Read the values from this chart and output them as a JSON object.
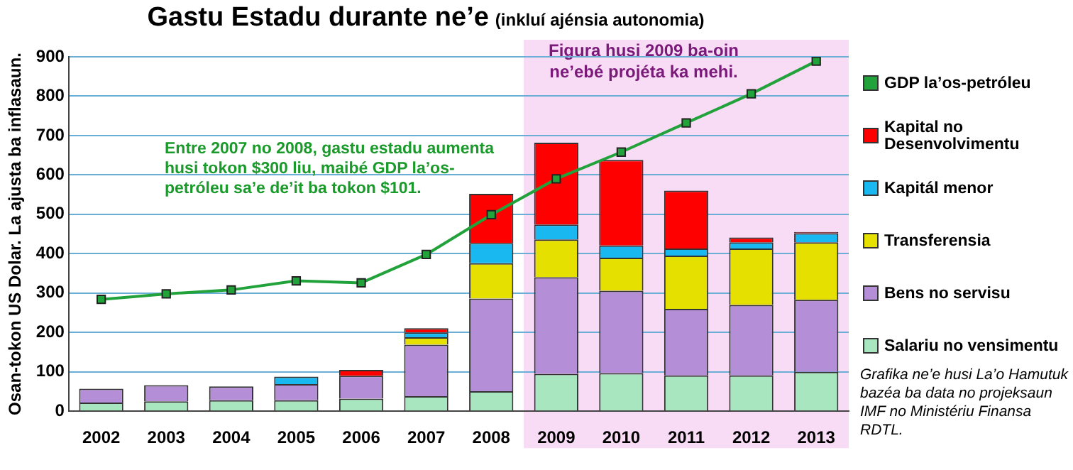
{
  "chart_data": {
    "type": "bar",
    "title": "Gastu Estadu durante ne’e",
    "subtitle": "(inkluí ajénsia autonomia)",
    "ylabel": "Osan-tokon US Dolar. La ajusta ba inflasaun.",
    "categories": [
      "2002",
      "2003",
      "2004",
      "2005",
      "2006",
      "2007",
      "2008",
      "2009",
      "2010",
      "2011",
      "2012",
      "2013"
    ],
    "stacked": true,
    "series": [
      {
        "name": "Salariu no vensimentu",
        "color": "#a8e6c0",
        "values": [
          22,
          25,
          28,
          28,
          32,
          38,
          51,
          95,
          97,
          91,
          91,
          100
        ]
      },
      {
        "name": "Bens no servisu",
        "color": "#b58ed8",
        "values": [
          35,
          41,
          35,
          41,
          58,
          131,
          235,
          245,
          209,
          169,
          179,
          183
        ]
      },
      {
        "name": "Transferensia",
        "color": "#e6e000",
        "values": [
          null,
          null,
          null,
          null,
          null,
          19,
          90,
          96,
          84,
          135,
          143,
          146
        ]
      },
      {
        "name": "Kapitál menor",
        "color": "#1ab8f0",
        "values": [
          null,
          null,
          null,
          19,
          null,
          12,
          51,
          38,
          31,
          18,
          16,
          23
        ]
      },
      {
        "name": "Kapital no Desenvolvimentu",
        "color": "#ff0000",
        "values": [
          null,
          null,
          null,
          null,
          15,
          11,
          125,
          208,
          217,
          147,
          12,
          3
        ]
      },
      {
        "name": "GDP la’os-petróleu",
        "type": "line",
        "color": "#22a23a",
        "values": [
          284,
          298,
          308,
          331,
          326,
          398,
          499,
          590,
          658,
          732,
          806,
          889
        ]
      }
    ],
    "ylim": [
      0,
      900
    ],
    "yticks": [
      0,
      100,
      200,
      300,
      400,
      500,
      600,
      700,
      800,
      900
    ],
    "grid": "y",
    "marker": "square",
    "legend": "right",
    "bands": [
      {
        "axis": "x",
        "from": "2009",
        "to": "2013",
        "label": "Figura husi 2009 ba-oin ne’ebé projéta ka mehi.",
        "color": "#f8dcf6"
      }
    ],
    "annotations": [
      "Entre 2007 no 2008, gastu estadu aumenta husi tokon $300 liu, maibé GDP la’os-petróleu sa’e de’it ba tokon $101.",
      "Grafika ne’e husi La’o Hamutuk bazéa ba data no projeksaun IMF no Ministériu Finansa RDTL."
    ]
  }
}
